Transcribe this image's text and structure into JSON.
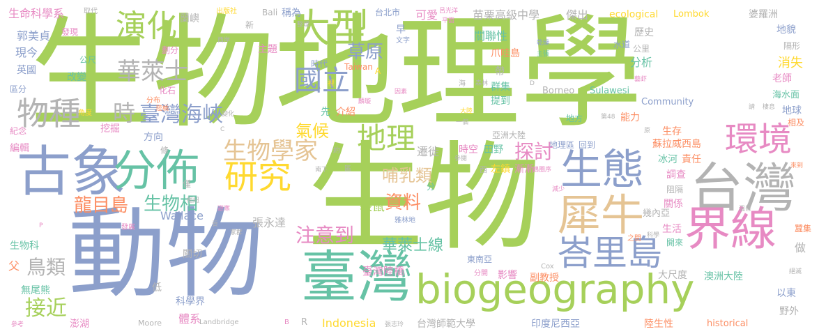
{
  "palette": {
    "green": "#a6d05a",
    "blue": "#8c9fcb",
    "teal": "#66c2a5",
    "orange": "#fc8d62",
    "pink": "#e78ac3",
    "yellow": "#ffd92f",
    "tan": "#e5c494",
    "gray": "#b3b3b3"
  },
  "words": [
    {
      "text": "生物地理學",
      "color": "green"
    },
    {
      "text": "生物",
      "color": "green"
    },
    {
      "text": "動物",
      "color": "blue"
    },
    {
      "text": "biogeography",
      "color": "green"
    },
    {
      "text": "台灣",
      "color": "gray"
    },
    {
      "text": "大型",
      "color": "green"
    },
    {
      "text": "演化",
      "color": "green"
    },
    {
      "text": "古象",
      "color": "blue"
    },
    {
      "text": "分佈",
      "color": "teal"
    },
    {
      "text": "臺灣",
      "color": "teal"
    },
    {
      "text": "生態",
      "color": "blue"
    },
    {
      "text": "環境",
      "color": "pink"
    },
    {
      "text": "界線",
      "color": "pink"
    },
    {
      "text": "犀牛",
      "color": "tan"
    },
    {
      "text": "峇里島",
      "color": "blue"
    },
    {
      "text": "研究",
      "color": "yellow"
    },
    {
      "text": "國立",
      "color": "blue"
    },
    {
      "text": "地理",
      "color": "green"
    },
    {
      "text": "生物學家",
      "color": "tan"
    },
    {
      "text": "物種",
      "color": "gray"
    },
    {
      "text": "華萊士",
      "color": "gray"
    },
    {
      "text": "臺灣海峽",
      "color": "blue"
    },
    {
      "text": "龍目島",
      "color": "orange"
    },
    {
      "text": "生物相",
      "color": "teal"
    },
    {
      "text": "時",
      "color": "gray"
    },
    {
      "text": "草原",
      "color": "blue"
    },
    {
      "text": "探討",
      "color": "pink"
    },
    {
      "text": "氣候",
      "color": "yellow"
    },
    {
      "text": "資料",
      "color": "orange"
    },
    {
      "text": "注意到",
      "color": "pink"
    },
    {
      "text": "華萊士線",
      "color": "teal"
    },
    {
      "text": "接近",
      "color": "green"
    },
    {
      "text": "鳥類",
      "color": "gray"
    },
    {
      "text": "哺乳類",
      "color": "tan"
    },
    {
      "text": "袋鼠",
      "color": "green"
    },
    {
      "text": "Indonesia",
      "color": "yellow"
    },
    {
      "text": "Wallace",
      "color": "blue"
    },
    {
      "text": "張永達",
      "color": "gray"
    },
    {
      "text": "臺灣陸橋",
      "color": "pink"
    },
    {
      "text": "生命科學系",
      "color": "pink"
    },
    {
      "text": "郭美貞",
      "color": "blue"
    },
    {
      "text": "現今",
      "color": "blue"
    },
    {
      "text": "英國",
      "color": "blue"
    },
    {
      "text": "區分",
      "color": "blue"
    },
    {
      "text": "紀念",
      "color": "pink"
    },
    {
      "text": "編輯",
      "color": "pink"
    },
    {
      "text": "生物科",
      "color": "teal"
    },
    {
      "text": "無尾熊",
      "color": "teal"
    },
    {
      "text": "澎湖",
      "color": "pink"
    },
    {
      "text": "科學界",
      "color": "blue"
    },
    {
      "text": "體系",
      "color": "pink"
    },
    {
      "text": "挖掘",
      "color": "pink"
    },
    {
      "text": "改變",
      "color": "teal"
    },
    {
      "text": "化石",
      "color": "pink"
    },
    {
      "text": "發現",
      "color": "pink"
    },
    {
      "text": "公尺",
      "color": "teal"
    },
    {
      "text": "方向",
      "color": "blue"
    },
    {
      "text": "關切",
      "color": "gray"
    },
    {
      "text": "低",
      "color": "gray"
    },
    {
      "text": "主題",
      "color": "pink"
    },
    {
      "text": "Bali",
      "color": "gray"
    },
    {
      "text": "稱為",
      "color": "blue"
    },
    {
      "text": "蘭嶼",
      "color": "gray"
    },
    {
      "text": "台北市",
      "color": "blue"
    },
    {
      "text": "可愛",
      "color": "pink"
    },
    {
      "text": "苗栗高級中學",
      "color": "gray"
    },
    {
      "text": "傑出",
      "color": "gray"
    },
    {
      "text": "ecological",
      "color": "yellow"
    },
    {
      "text": "Lombok",
      "color": "yellow"
    },
    {
      "text": "婆羅洲",
      "color": "gray"
    },
    {
      "text": "地貌",
      "color": "blue"
    },
    {
      "text": "歷史",
      "color": "gray"
    },
    {
      "text": "隔形",
      "color": "gray"
    },
    {
      "text": "消失",
      "color": "yellow"
    },
    {
      "text": "老師",
      "color": "pink"
    },
    {
      "text": "海水面",
      "color": "teal"
    },
    {
      "text": "地球",
      "color": "blue"
    },
    {
      "text": "相及",
      "color": "orange"
    },
    {
      "text": "公里",
      "color": "gray"
    },
    {
      "text": "分析",
      "color": "teal"
    },
    {
      "text": "關聯性",
      "color": "teal"
    },
    {
      "text": "爪哇島",
      "color": "orange"
    },
    {
      "text": "帶",
      "color": "gray"
    },
    {
      "text": "群集",
      "color": "teal"
    },
    {
      "text": "提到",
      "color": "teal"
    },
    {
      "text": "Borneo",
      "color": "gray"
    },
    {
      "text": "Sulawesi",
      "color": "teal"
    },
    {
      "text": "Community",
      "color": "blue"
    },
    {
      "text": "能力",
      "color": "orange"
    },
    {
      "text": "地方",
      "color": "teal"
    },
    {
      "text": "時代",
      "color": "blue"
    },
    {
      "text": "Taiwan",
      "color": "orange"
    },
    {
      "text": "先",
      "color": "teal"
    },
    {
      "text": "介紹",
      "color": "orange"
    },
    {
      "text": "亞洲大陸",
      "color": "gray"
    },
    {
      "text": "遷徙",
      "color": "gray"
    },
    {
      "text": "時空",
      "color": "pink"
    },
    {
      "text": "田野",
      "color": "teal"
    },
    {
      "text": "漸漸",
      "color": "pink"
    },
    {
      "text": "左鎮",
      "color": "yellow"
    },
    {
      "text": "地理區",
      "color": "blue"
    },
    {
      "text": "回到",
      "color": "blue"
    },
    {
      "text": "蘇拉威西島",
      "color": "orange"
    },
    {
      "text": "生存",
      "color": "orange"
    },
    {
      "text": "責任",
      "color": "orange"
    },
    {
      "text": "冰河",
      "color": "teal"
    },
    {
      "text": "調查",
      "color": "pink"
    },
    {
      "text": "阻隔",
      "color": "gray"
    },
    {
      "text": "關係",
      "color": "pink"
    },
    {
      "text": "幾內亞",
      "color": "gray"
    },
    {
      "text": "生活",
      "color": "pink"
    },
    {
      "text": "開來",
      "color": "teal"
    },
    {
      "text": "澳洲大陸",
      "color": "teal"
    },
    {
      "text": "大尺度",
      "color": "gray"
    },
    {
      "text": "副教授",
      "color": "orange"
    },
    {
      "text": "影響",
      "color": "pink"
    },
    {
      "text": "東南亞",
      "color": "blue"
    },
    {
      "text": "台灣師範大學",
      "color": "gray"
    },
    {
      "text": "印度尼西亞",
      "color": "blue"
    },
    {
      "text": "陸生性",
      "color": "orange"
    },
    {
      "text": "historical",
      "color": "orange"
    },
    {
      "text": "以東",
      "color": "blue"
    },
    {
      "text": "野外",
      "color": "gray"
    },
    {
      "text": "做",
      "color": "gray"
    },
    {
      "text": "蠶集",
      "color": "orange"
    },
    {
      "text": "水道",
      "color": "blue"
    },
    {
      "text": "早",
      "color": "blue"
    },
    {
      "text": "文字",
      "color": "blue"
    },
    {
      "text": "整理",
      "color": "gray"
    },
    {
      "text": "西岸",
      "color": "gray"
    },
    {
      "text": "新",
      "color": "gray"
    },
    {
      "text": "出版社",
      "color": "yellow"
    },
    {
      "text": "劃分",
      "color": "pink"
    },
    {
      "text": "分布",
      "color": "orange"
    },
    {
      "text": "陸橋",
      "color": "orange"
    },
    {
      "text": "角度",
      "color": "yellow"
    },
    {
      "text": "取代",
      "color": "gray"
    },
    {
      "text": "條",
      "color": "gray"
    },
    {
      "text": "僅",
      "color": "gray"
    },
    {
      "text": "變化",
      "color": "gray"
    },
    {
      "text": "南下",
      "color": "gray"
    },
    {
      "text": "區",
      "color": "gray"
    },
    {
      "text": "約",
      "color": "gray"
    },
    {
      "text": "Landbridge",
      "color": "gray"
    },
    {
      "text": "Moore",
      "color": "gray"
    },
    {
      "text": "B",
      "color": "pink"
    },
    {
      "text": "R",
      "color": "gray"
    },
    {
      "text": "A",
      "color": "yellow"
    },
    {
      "text": "C",
      "color": "gray"
    },
    {
      "text": "D",
      "color": "gray"
    },
    {
      "text": "P",
      "color": "pink"
    },
    {
      "text": "張志玲",
      "color": "gray"
    },
    {
      "text": "雅林地",
      "color": "blue"
    },
    {
      "text": "分開",
      "color": "pink"
    },
    {
      "text": "Cox",
      "color": "gray"
    },
    {
      "text": "科學",
      "color": "gray"
    },
    {
      "text": "之間",
      "color": "orange"
    },
    {
      "text": "溫普",
      "color": "gray"
    },
    {
      "text": "絕滅",
      "color": "gray"
    },
    {
      "text": "來到",
      "color": "orange"
    },
    {
      "text": "減少",
      "color": "pink"
    },
    {
      "text": "鶴圈序",
      "color": "pink"
    },
    {
      "text": "西",
      "color": "gray"
    },
    {
      "text": "分",
      "color": "teal"
    },
    {
      "text": "海",
      "color": "gray"
    },
    {
      "text": "森林",
      "color": "gray"
    },
    {
      "text": "因素",
      "color": "pink"
    },
    {
      "text": "麟璇",
      "color": "pink"
    },
    {
      "text": "裡",
      "color": "yellow"
    },
    {
      "text": "呂光洋",
      "color": "pink"
    },
    {
      "text": "平面",
      "color": "pink"
    },
    {
      "text": "乾燥",
      "color": "blue"
    },
    {
      "text": "主張",
      "color": "teal"
    },
    {
      "text": "藝虾",
      "color": "pink"
    },
    {
      "text": "請",
      "color": "gray"
    },
    {
      "text": "棲息",
      "color": "gray"
    },
    {
      "text": "第48",
      "color": "gray"
    },
    {
      "text": "原",
      "color": "gray"
    },
    {
      "text": "一個",
      "color": "gray"
    },
    {
      "text": "大陸",
      "color": "yellow"
    },
    {
      "text": "參閱",
      "color": "gray"
    },
    {
      "text": "發展",
      "color": "pink"
    },
    {
      "text": "參考",
      "color": "pink"
    },
    {
      "text": "樞紐",
      "color": "gray"
    },
    {
      "text": "避寒",
      "color": "pink"
    },
    {
      "text": "家群",
      "color": "gray"
    },
    {
      "text": "貢",
      "color": "gray"
    },
    {
      "text": "父",
      "color": "orange"
    }
  ]
}
